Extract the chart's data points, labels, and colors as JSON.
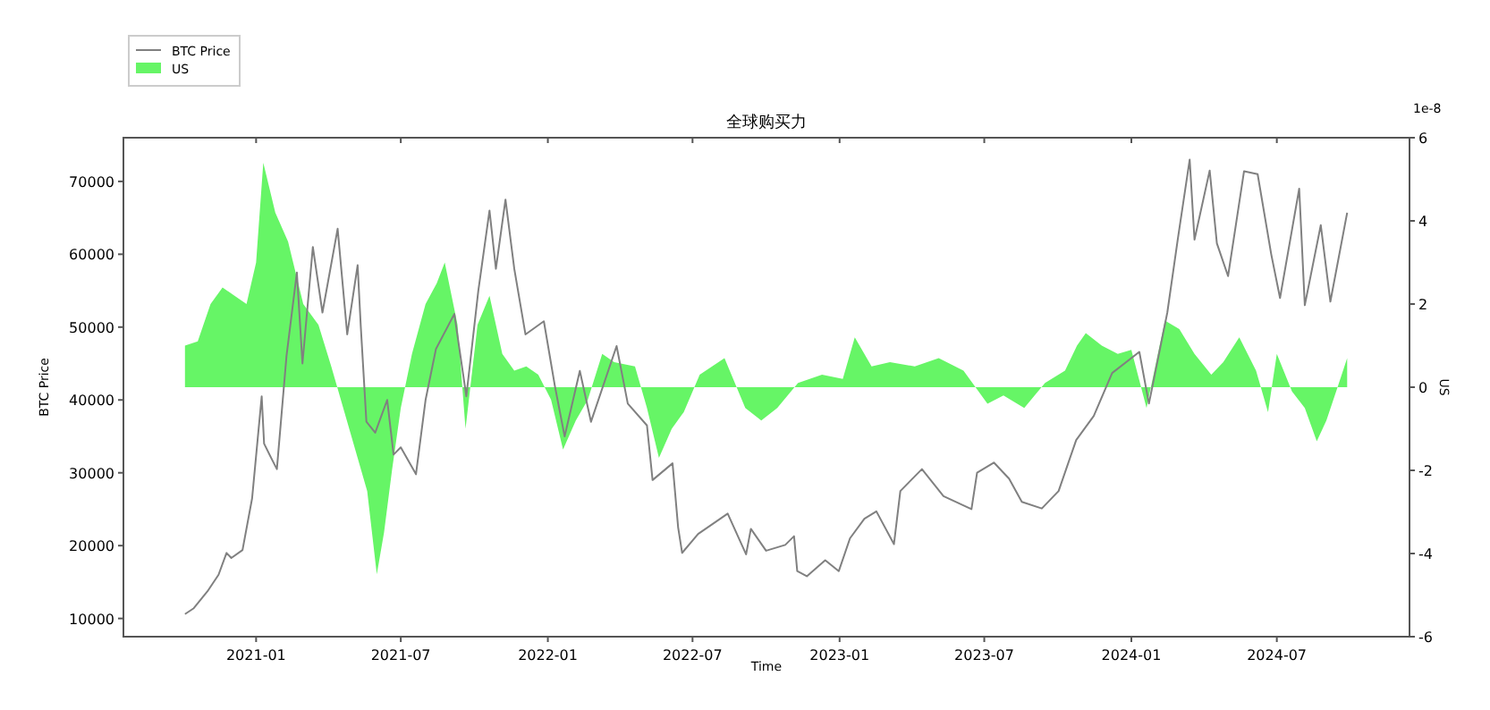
{
  "chart_data": {
    "type": "line",
    "title": "全球购买力",
    "xlabel": "Time",
    "ylabel": "BTC Price",
    "y2label": "US",
    "annotations": [
      "1e-8"
    ],
    "xlim": [
      "2020-07-19",
      "2024-12-14"
    ],
    "xticks": [
      "2021-01",
      "2021-07",
      "2022-01",
      "2022-07",
      "2023-01",
      "2023-07",
      "2024-01",
      "2024-07"
    ],
    "ylim": [
      7500,
      76000
    ],
    "yticks": [
      10000,
      20000,
      30000,
      40000,
      50000,
      60000,
      70000
    ],
    "y2lim": [
      -6,
      6
    ],
    "y2ticks": [
      -6,
      -4,
      -2,
      0,
      2,
      4,
      6
    ],
    "legend": "top left",
    "grid": false,
    "series": [
      {
        "name": "US",
        "type": "area",
        "axis": "y2",
        "color": "#66f566",
        "x": [
          "2020-10-04",
          "2020-10-20",
          "2020-11-05",
          "2020-11-20",
          "2020-12-05",
          "2020-12-20",
          "2021-01-01",
          "2021-01-10",
          "2021-01-25",
          "2021-02-10",
          "2021-03-01",
          "2021-03-20",
          "2021-04-05",
          "2021-04-20",
          "2021-05-05",
          "2021-05-20",
          "2021-06-01",
          "2021-06-10",
          "2021-06-20",
          "2021-07-01",
          "2021-07-15",
          "2021-08-01",
          "2021-08-15",
          "2021-08-25",
          "2021-09-10",
          "2021-09-20",
          "2021-10-05",
          "2021-10-20",
          "2021-11-05",
          "2021-11-20",
          "2021-12-05",
          "2021-12-20",
          "2022-01-05",
          "2022-01-20",
          "2022-02-05",
          "2022-02-20",
          "2022-03-10",
          "2022-03-25",
          "2022-04-20",
          "2022-05-05",
          "2022-05-20",
          "2022-06-05",
          "2022-06-20",
          "2022-07-10",
          "2022-08-10",
          "2022-09-05",
          "2022-09-25",
          "2022-10-15",
          "2022-11-10",
          "2022-12-10",
          "2023-01-05",
          "2023-01-20",
          "2023-02-10",
          "2023-03-05",
          "2023-04-05",
          "2023-05-05",
          "2023-06-05",
          "2023-07-05",
          "2023-07-25",
          "2023-08-20",
          "2023-09-15",
          "2023-10-10",
          "2023-10-25",
          "2023-11-05",
          "2023-11-25",
          "2023-12-15",
          "2024-01-01",
          "2024-01-20",
          "2024-02-01",
          "2024-02-12",
          "2024-03-01",
          "2024-03-20",
          "2024-04-10",
          "2024-04-25",
          "2024-05-15",
          "2024-06-05",
          "2024-06-20",
          "2024-07-01",
          "2024-07-20",
          "2024-08-05",
          "2024-08-20",
          "2024-09-01",
          "2024-09-15",
          "2024-09-27"
        ],
        "values": [
          1.0,
          1.1,
          2.0,
          2.4,
          2.2,
          2.0,
          3.0,
          5.4,
          4.2,
          3.5,
          2.0,
          1.5,
          0.5,
          -0.5,
          -1.5,
          -2.5,
          -4.5,
          -3.5,
          -2.0,
          -0.5,
          0.8,
          2.0,
          2.5,
          3.0,
          1.5,
          -1.0,
          1.5,
          2.2,
          0.8,
          0.4,
          0.5,
          0.3,
          -0.3,
          -1.5,
          -0.8,
          -0.3,
          0.8,
          0.6,
          0.5,
          -0.5,
          -1.7,
          -1.0,
          -0.6,
          0.3,
          0.7,
          -0.5,
          -0.8,
          -0.5,
          0.1,
          0.3,
          0.2,
          1.2,
          0.5,
          0.6,
          0.5,
          0.7,
          0.4,
          -0.4,
          -0.2,
          -0.5,
          0.1,
          0.4,
          1.0,
          1.3,
          1.0,
          0.8,
          0.9,
          -0.5,
          0.6,
          1.6,
          1.4,
          0.8,
          0.3,
          0.6,
          1.2,
          0.4,
          -0.6,
          0.8,
          -0.1,
          -0.5,
          -1.3,
          -0.8,
          0.0,
          0.7
        ]
      },
      {
        "name": "BTC Price",
        "axis": "y",
        "color": "#808080",
        "x": [
          "2020-10-04",
          "2020-10-15",
          "2020-11-01",
          "2020-11-15",
          "2020-11-25",
          "2020-12-01",
          "2020-12-15",
          "2020-12-27",
          "2021-01-08",
          "2021-01-11",
          "2021-01-20",
          "2021-01-27",
          "2021-02-08",
          "2021-02-21",
          "2021-02-28",
          "2021-03-13",
          "2021-03-25",
          "2021-04-13",
          "2021-04-25",
          "2021-05-08",
          "2021-05-12",
          "2021-05-19",
          "2021-05-30",
          "2021-06-14",
          "2021-06-22",
          "2021-07-01",
          "2021-07-20",
          "2021-08-01",
          "2021-08-14",
          "2021-09-06",
          "2021-09-21",
          "2021-10-06",
          "2021-10-20",
          "2021-10-28",
          "2021-11-09",
          "2021-11-20",
          "2021-12-04",
          "2021-12-27",
          "2022-01-10",
          "2022-01-22",
          "2022-02-10",
          "2022-02-24",
          "2022-03-28",
          "2022-04-11",
          "2022-05-05",
          "2022-05-12",
          "2022-06-06",
          "2022-06-13",
          "2022-06-18",
          "2022-07-08",
          "2022-08-14",
          "2022-09-06",
          "2022-09-12",
          "2022-10-01",
          "2022-10-25",
          "2022-11-05",
          "2022-11-09",
          "2022-11-21",
          "2022-12-14",
          "2022-12-31",
          "2023-01-14",
          "2023-02-01",
          "2023-02-16",
          "2023-03-10",
          "2023-03-18",
          "2023-04-14",
          "2023-05-11",
          "2023-06-15",
          "2023-06-22",
          "2023-07-13",
          "2023-08-01",
          "2023-08-17",
          "2023-09-11",
          "2023-10-02",
          "2023-10-24",
          "2023-11-15",
          "2023-12-08",
          "2024-01-11",
          "2024-01-23",
          "2024-02-15",
          "2024-02-28",
          "2024-03-14",
          "2024-03-20",
          "2024-04-08",
          "2024-04-17",
          "2024-05-01",
          "2024-05-21",
          "2024-06-07",
          "2024-06-24",
          "2024-07-05",
          "2024-07-29",
          "2024-08-05",
          "2024-08-25",
          "2024-09-06",
          "2024-09-27"
        ],
        "values": [
          10600,
          11400,
          13700,
          16000,
          19000,
          18300,
          19400,
          26500,
          40500,
          34000,
          32000,
          30500,
          46000,
          57500,
          45000,
          61000,
          52000,
          63500,
          49000,
          58500,
          50000,
          37000,
          35500,
          40000,
          32500,
          33500,
          29800,
          40000,
          47000,
          51800,
          40500,
          55000,
          66000,
          58000,
          67500,
          58000,
          49000,
          50800,
          41800,
          35000,
          44000,
          37000,
          47400,
          39500,
          36500,
          29000,
          31300,
          22500,
          19000,
          21600,
          24400,
          18800,
          22300,
          19300,
          20100,
          21300,
          16500,
          15800,
          18000,
          16500,
          21000,
          23700,
          24700,
          20200,
          27500,
          30500,
          26800,
          25000,
          30000,
          31400,
          29200,
          26000,
          25100,
          27500,
          34500,
          37800,
          43700,
          46600,
          39500,
          52000,
          62000,
          73000,
          62000,
          71500,
          61500,
          57000,
          71400,
          71000,
          60000,
          54000,
          69000,
          53000,
          64000,
          53500,
          65700
        ]
      }
    ]
  }
}
